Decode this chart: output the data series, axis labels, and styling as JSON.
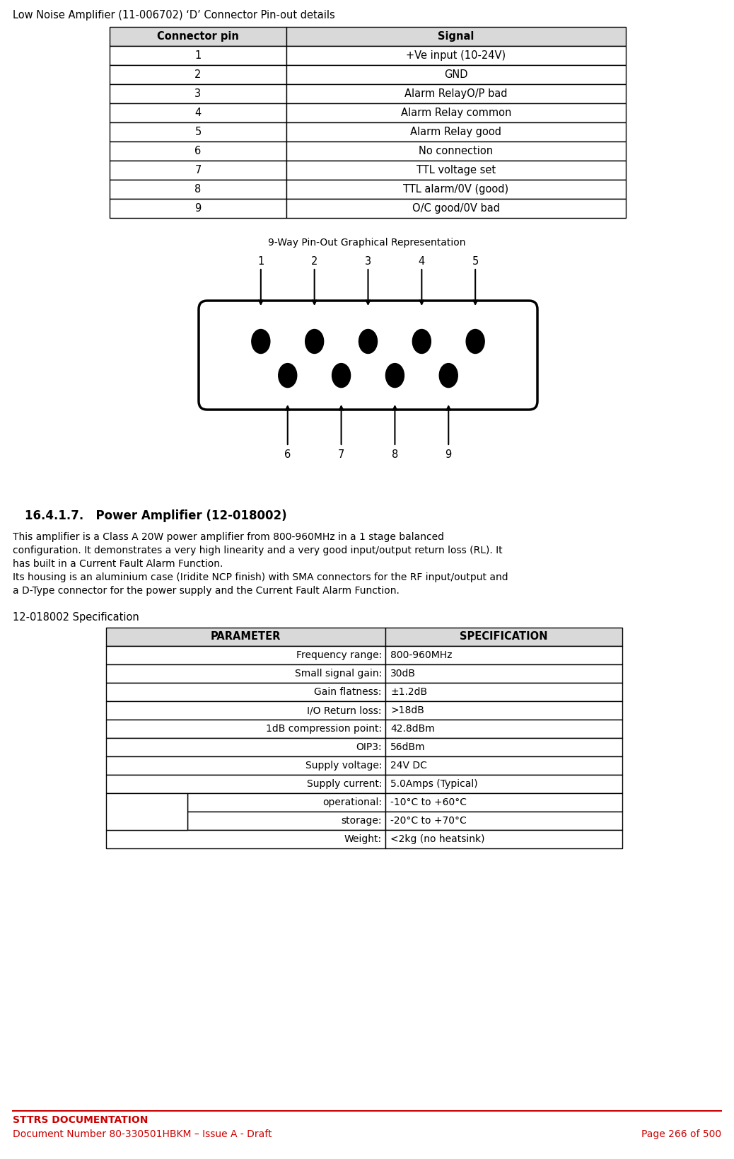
{
  "page_title": "Low Noise Amplifier (11-006702) ‘D’ Connector Pin-out details",
  "table1_headers": [
    "Connector pin",
    "Signal"
  ],
  "table1_rows": [
    [
      "1",
      "+Ve input (10-24V)"
    ],
    [
      "2",
      "GND"
    ],
    [
      "3",
      "Alarm RelayO/P bad"
    ],
    [
      "4",
      "Alarm Relay common"
    ],
    [
      "5",
      "Alarm Relay good"
    ],
    [
      "6",
      "No connection"
    ],
    [
      "7",
      "TTL voltage set"
    ],
    [
      "8",
      "TTL alarm/0V (good)"
    ],
    [
      "9",
      "O/C good/0V bad"
    ]
  ],
  "diagram_title": "9-Way Pin-Out Graphical Representation",
  "top_pins": [
    "1",
    "2",
    "3",
    "4",
    "5"
  ],
  "bottom_pins": [
    "6",
    "7",
    "8",
    "9"
  ],
  "section_title": "16.4.1.7.   Power Amplifier (12-018002)",
  "body_text_lines": [
    "This amplifier is a Class A 20W power amplifier from 800-960MHz in a 1 stage balanced",
    "configuration. It demonstrates a very high linearity and a very good input/output return loss (RL). It",
    "has built in a Current Fault Alarm Function.",
    "Its housing is an aluminium case (Iridite NCP finish) with SMA connectors for the RF input/output and",
    "a D-Type connector for the power supply and the Current Fault Alarm Function."
  ],
  "spec_label": "12-018002 Specification",
  "table2_headers": [
    "PARAMETER",
    "SPECIFICATION"
  ],
  "table2_rows": [
    [
      "Frequency range:",
      "800-960MHz"
    ],
    [
      "Small signal gain:",
      "30dB"
    ],
    [
      "Gain flatness:",
      "±1.2dB"
    ],
    [
      "I/O Return loss:",
      ">18dB"
    ],
    [
      "1dB compression point:",
      "42.8dBm"
    ],
    [
      "OIP3:",
      "56dBm"
    ],
    [
      "Supply voltage:",
      "24V DC"
    ],
    [
      "Supply current:",
      "5.0Amps (Typical)"
    ],
    [
      "operational:",
      "-10°C to +60°C"
    ],
    [
      "storage:",
      "-20°C to +70°C"
    ],
    [
      "Weight:",
      "<2kg (no heatsink)"
    ]
  ],
  "footer_title": "STTRS DOCUMENTATION",
  "footer_doc": "Document Number 80-330501HBKM – Issue A - Draft",
  "footer_page": "Page 266 of 500",
  "bg_color": "#ffffff",
  "header_bg": "#d9d9d9",
  "footer_color": "#cc0000",
  "line_color": "#cc0000"
}
